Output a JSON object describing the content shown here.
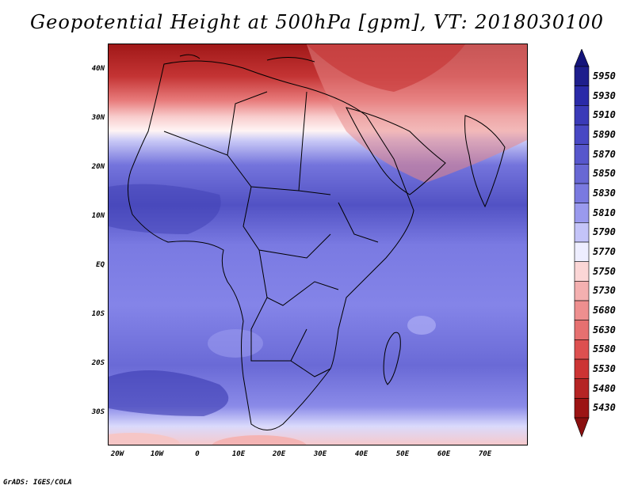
{
  "title": "Geopotential Height at 500hPa [gpm], VT: 2018030100",
  "map": {
    "type": "filled-contour map",
    "region": "Africa",
    "lon_range": [
      -25,
      80
    ],
    "lat_range": [
      -37,
      45
    ],
    "x_ticks": [
      {
        "value": -20,
        "label": "20W"
      },
      {
        "value": -10,
        "label": "10W"
      },
      {
        "value": 0,
        "label": "0"
      },
      {
        "value": 10,
        "label": "10E"
      },
      {
        "value": 20,
        "label": "20E"
      },
      {
        "value": 30,
        "label": "30E"
      },
      {
        "value": 40,
        "label": "40E"
      },
      {
        "value": 50,
        "label": "50E"
      },
      {
        "value": 60,
        "label": "60E"
      },
      {
        "value": 70,
        "label": "70E"
      }
    ],
    "y_ticks": [
      {
        "value": 40,
        "label": "40N"
      },
      {
        "value": 30,
        "label": "30N"
      },
      {
        "value": 20,
        "label": "20N"
      },
      {
        "value": 10,
        "label": "10N"
      },
      {
        "value": 0,
        "label": "EQ"
      },
      {
        "value": -10,
        "label": "10S"
      },
      {
        "value": -20,
        "label": "20S"
      },
      {
        "value": -30,
        "label": "30S"
      }
    ]
  },
  "colorbar": {
    "levels": [
      "5950",
      "5930",
      "5910",
      "5890",
      "5870",
      "5850",
      "5830",
      "5810",
      "5790",
      "5770",
      "5750",
      "5730",
      "5680",
      "5630",
      "5580",
      "5530",
      "5480",
      "5430"
    ],
    "colors": [
      "#1e1e8c",
      "#2a2aa8",
      "#3a3ab8",
      "#4848c4",
      "#5757cc",
      "#6868d4",
      "#7a7ae0",
      "#9a9aee",
      "#c4c4f8",
      "#eeeeff",
      "#fbd6d6",
      "#f4b0b0",
      "#ee8f8f",
      "#e67070",
      "#dd5050",
      "#cc3434",
      "#b52424",
      "#9c1414"
    ],
    "top_arrow_color": "#14147a",
    "bottom_arrow_color": "#8a0f0f"
  },
  "credit": "GrADS: IGES/COLA"
}
